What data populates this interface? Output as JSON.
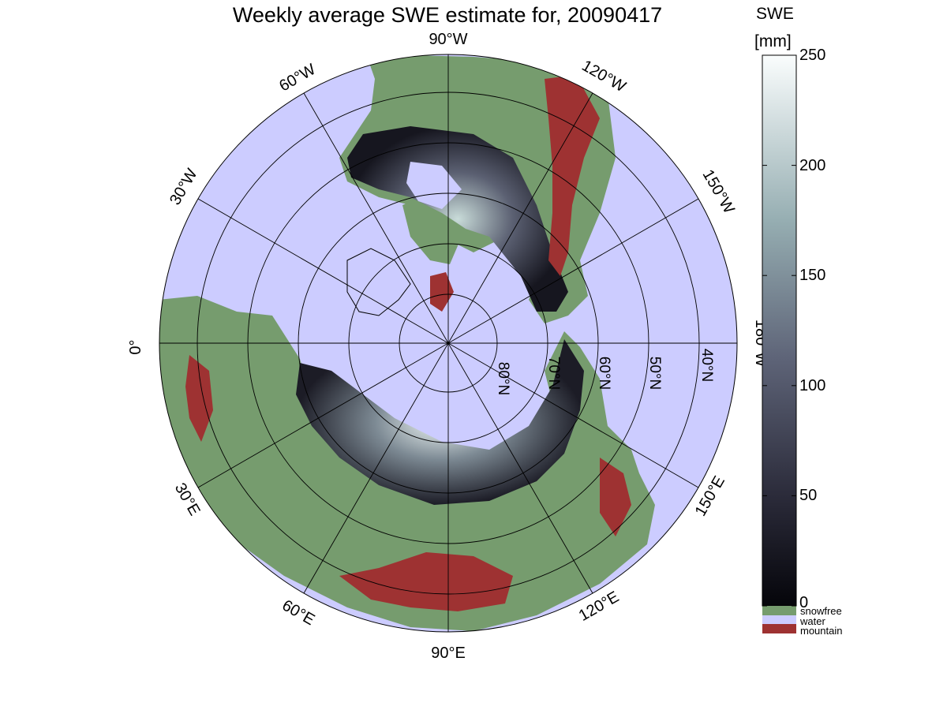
{
  "title": "Weekly average SWE estimate for, 20090417",
  "map": {
    "longitude_labels": {
      "lon_90W": "90°W",
      "lon_120W": "120°W",
      "lon_150W": "150°W",
      "lon_180W": "180°W",
      "lon_150E": "150°E",
      "lon_120E": "120°E",
      "lon_90E": "90°E",
      "lon_60E": "60°E",
      "lon_30E": "30°E",
      "lon_0": "0°",
      "lon_30W": "30°W",
      "lon_60W": "60°W"
    },
    "latitude_labels": {
      "lat_80N": "80°N",
      "lat_70N": "70°N",
      "lat_60N": "60°N",
      "lat_50N": "50°N",
      "lat_40N": "40°N"
    },
    "colors": {
      "water": "#ccccff",
      "snowfree": "#769c6e",
      "mountain": "#9e3232",
      "coastline": "#000000",
      "snow_low": "#0b0b12",
      "snow_high": "#f8fcfc"
    }
  },
  "colorbar": {
    "unit_label": "SWE",
    "unit_bracket": "[mm]",
    "ticks": [
      "250",
      "200",
      "150",
      "100",
      "50",
      "0"
    ],
    "tick_values": [
      250,
      200,
      150,
      100,
      50,
      0
    ],
    "range": [
      0,
      250
    ],
    "legend": [
      "snowfree",
      "water",
      "mountain"
    ],
    "legend_colors": [
      "#769c6e",
      "#ccccff",
      "#9e3232"
    ]
  }
}
